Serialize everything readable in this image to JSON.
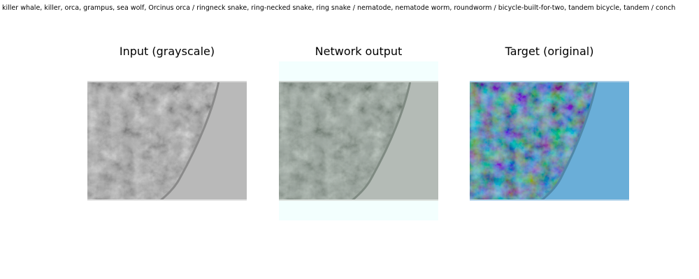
{
  "figure": {
    "suptitle": "killer whale, killer, orca, grampus, sea wolf, Orcinus orca / ringneck snake, ring-necked snake, ring snake / nematode, nematode worm, roundworm / bicycle-built-for-two, tandem bicycle, tandem / conch"
  },
  "panels": [
    {
      "title": "Input (grayscale)",
      "image": "grayscale-micrograph"
    },
    {
      "title": "Network output",
      "image": "desaturated-colorized-micrograph"
    },
    {
      "title": "Target (original)",
      "image": "blue-tinted-micrograph"
    }
  ],
  "colors": {
    "output_padding": "#f3fffe",
    "target_right_region": "#6aaed8"
  }
}
